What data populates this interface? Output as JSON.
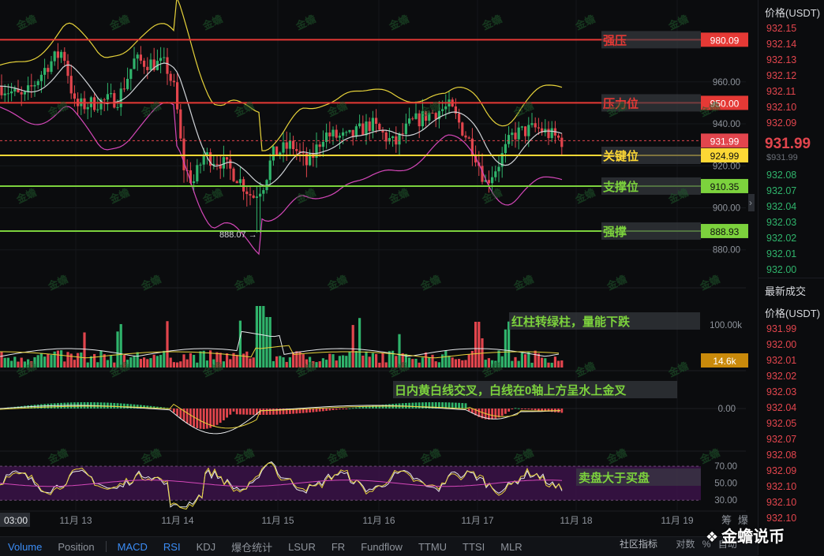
{
  "chart_data": {
    "type": "candlestick",
    "x_ticks": [
      "11月 13",
      "11月 14",
      "11月 15",
      "11月 16",
      "11月 17",
      "11月 18",
      "11月 19"
    ],
    "time_label": "03:00",
    "price_axis": {
      "ticks": [
        960.0,
        940.0,
        920.0,
        900.0,
        880.0
      ],
      "range": [
        872,
        996
      ]
    },
    "current_price": 931.99,
    "low_marker": "888.07 →",
    "levels": [
      {
        "name": "强压",
        "value": 980.09,
        "color": "#e53935",
        "label_bg": "#e53935"
      },
      {
        "name": "压力位",
        "value": 950.0,
        "color": "#e53935",
        "label_bg": "#e53935"
      },
      {
        "name": "关键位",
        "value": 924.99,
        "color": "#fdd835",
        "label_bg": "#fdd835"
      },
      {
        "name": "支撑位",
        "value": 910.35,
        "color": "#7cd23d",
        "label_bg": "#7cd23d"
      },
      {
        "name": "强撑",
        "value": 888.93,
        "color": "#7cd23d",
        "label_bg": "#7cd23d"
      }
    ],
    "level_value_labels": [
      "980.09",
      "950.00",
      "924.99",
      "910.35",
      "888.93"
    ],
    "current_price_label": "931.99",
    "colors": {
      "up": "#2fb36b",
      "down": "#e2454d",
      "boll_upper": "#e6d23a",
      "boll_mid": "#cfd2d6",
      "boll_lower": "#d447b8"
    },
    "volume": {
      "axis_label": "100.00k",
      "current_label": "14.6k",
      "annotation": "红柱转绿柱，量能下跌"
    },
    "macd": {
      "zero_label": "0.00",
      "annotation": "日内黄白线交叉，白线在0轴上方呈水上金叉"
    },
    "rsi": {
      "ticks": [
        "70.00",
        "50.00",
        "30.00"
      ],
      "annotation": "卖盘大于买盘"
    },
    "side_icons": [
      "筹",
      "爆"
    ]
  },
  "orderbook": {
    "title": "价格(USDT)",
    "asks": [
      "932.15",
      "932.14",
      "932.13",
      "932.12",
      "932.11",
      "932.10",
      "932.09"
    ],
    "last_price": "931.99",
    "last_price_sub": "$931.99",
    "bids": [
      "932.08",
      "932.07",
      "932.04",
      "932.03",
      "932.02",
      "932.01",
      "932.00"
    ],
    "trades_title": "最新成交",
    "trades_header": "价格(USDT)",
    "trades": [
      {
        "p": "931.99",
        "c": "red"
      },
      {
        "p": "932.00",
        "c": "red"
      },
      {
        "p": "932.01",
        "c": "red"
      },
      {
        "p": "932.02",
        "c": "red"
      },
      {
        "p": "932.03",
        "c": "red"
      },
      {
        "p": "932.04",
        "c": "red"
      },
      {
        "p": "932.05",
        "c": "red"
      },
      {
        "p": "932.07",
        "c": "red"
      },
      {
        "p": "932.08",
        "c": "red"
      },
      {
        "p": "932.09",
        "c": "red"
      },
      {
        "p": "932.10",
        "c": "red"
      },
      {
        "p": "932.10",
        "c": "red"
      },
      {
        "p": "932.10",
        "c": "red"
      }
    ]
  },
  "tabs": [
    "Volume",
    "Position",
    "MACD",
    "RSI",
    "KDJ",
    "爆仓统计",
    "LSUR",
    "FR",
    "Fundflow",
    "TTMU",
    "TTSI",
    "MLR"
  ],
  "active_tabs": [
    "Volume",
    "MACD",
    "RSI"
  ],
  "community_label": "社区指标",
  "truncated_labels": [
    "对数",
    "%",
    "自动"
  ],
  "brand": {
    "icon": "❖",
    "text": "金蟾说币"
  },
  "watermark_text": "金蟾"
}
